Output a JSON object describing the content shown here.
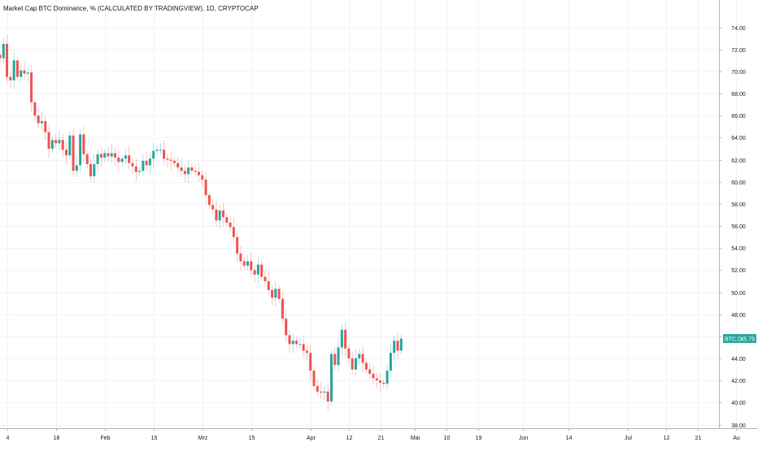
{
  "header": {
    "title": "Market Cap BTC Dominance, % (CALCULATED BY TRADINGVIEW), 1D, CRYPTOCAP"
  },
  "colors": {
    "up": "#26a69a",
    "down": "#ef5350",
    "grid": "#f0f3fa",
    "axis_text": "#131722",
    "badge_bg": "#26a69a",
    "badge_text": "#ffffff"
  },
  "price_badge": {
    "symbol": "BTC.D",
    "value": "45.79"
  },
  "chart_data": {
    "type": "candlestick",
    "y_axis_side": "right",
    "ylim": [
      37.6,
      75.0
    ],
    "y_ticks": [
      "38.00",
      "40.00",
      "42.00",
      "44.00",
      "46.00",
      "48.00",
      "50.00",
      "52.00",
      "54.00",
      "56.00",
      "58.00",
      "60.00",
      "62.00",
      "64.00",
      "66.00",
      "68.00",
      "70.00",
      "72.00",
      "74.00"
    ],
    "x_range": [
      "2021-01-02",
      "2021-08-01"
    ],
    "x_ticks": [
      {
        "date": "2021-01-04",
        "label": "4"
      },
      {
        "date": "2021-01-18",
        "label": "18"
      },
      {
        "date": "2021-02-01",
        "label": "Feb"
      },
      {
        "date": "2021-02-15",
        "label": "15"
      },
      {
        "date": "2021-03-01",
        "label": "Mrz"
      },
      {
        "date": "2021-03-15",
        "label": "15"
      },
      {
        "date": "2021-04-01",
        "label": "Apr"
      },
      {
        "date": "2021-04-12",
        "label": "12"
      },
      {
        "date": "2021-04-21",
        "label": "21"
      },
      {
        "date": "2021-05-01",
        "label": "Mai"
      },
      {
        "date": "2021-05-10",
        "label": "10"
      },
      {
        "date": "2021-05-19",
        "label": "19"
      },
      {
        "date": "2021-06-01",
        "label": "Jun"
      },
      {
        "date": "2021-06-14",
        "label": "14"
      },
      {
        "date": "2021-07-01",
        "label": "Jul"
      },
      {
        "date": "2021-07-12",
        "label": "12"
      },
      {
        "date": "2021-07-21",
        "label": "21"
      },
      {
        "date": "2021-08-01",
        "label": "Au"
      }
    ],
    "start_date": "2021-01-02",
    "closes": [
      71.2,
      72.5,
      69.5,
      69.2,
      71.0,
      69.5,
      70.1,
      69.8,
      69.9,
      67.2,
      66.0,
      65.3,
      65.5,
      64.5,
      63.0,
      63.8,
      63.5,
      63.8,
      62.9,
      62.4,
      64.2,
      61.0,
      61.5,
      64.3,
      62.5,
      61.6,
      60.5,
      61.6,
      62.5,
      62.2,
      62.6,
      62.3,
      62.6,
      62.2,
      61.8,
      62.1,
      62.4,
      61.7,
      61.4,
      60.9,
      61.0,
      61.9,
      61.5,
      62.1,
      62.8,
      62.9,
      62.9,
      62.1,
      62.0,
      61.9,
      61.7,
      61.3,
      61.0,
      60.7,
      61.3,
      61.0,
      60.9,
      60.6,
      60.2,
      58.8,
      57.9,
      57.5,
      56.5,
      57.4,
      56.8,
      56.3,
      55.9,
      55.0,
      53.5,
      52.8,
      52.4,
      52.8,
      52.0,
      51.6,
      52.5,
      51.4,
      51.0,
      50.2,
      49.5,
      50.3,
      49.4,
      47.6,
      46.1,
      45.3,
      45.6,
      45.3,
      45.3,
      44.7,
      44.5,
      42.9,
      41.5,
      41.0,
      40.9,
      41.0,
      40.1,
      44.4,
      43.4,
      45.0,
      46.6,
      44.9,
      44.0,
      43.0,
      44.0,
      44.4,
      43.6,
      43.0,
      42.6,
      42.2,
      42.0,
      41.8,
      41.7,
      42.9,
      44.5,
      45.6,
      44.7,
      45.8
    ]
  }
}
